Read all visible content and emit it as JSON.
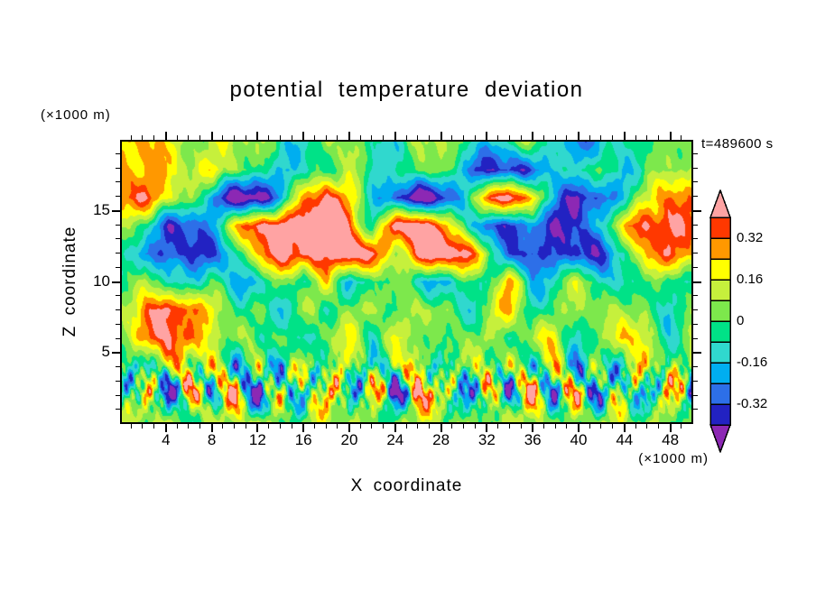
{
  "title": "potential temperature deviation",
  "annotations": {
    "time": "t=489600 s",
    "z_unit": "(×1000 m)",
    "x_unit": "(×1000 m)"
  },
  "axes": {
    "x": {
      "label": "X coordinate",
      "unit": "(×1000 m)",
      "range": [
        0,
        50
      ],
      "major_ticks": [
        4,
        8,
        12,
        16,
        20,
        24,
        28,
        32,
        36,
        40,
        44,
        48
      ],
      "minor_tick_step": 1
    },
    "z": {
      "label": "Z coordinate",
      "unit": "(×1000 m)",
      "range": [
        0,
        20
      ],
      "major_ticks": [
        5,
        10,
        15
      ],
      "minor_tick_step": 1
    }
  },
  "colorbar": {
    "tick_labels": [
      "0.32",
      "0.16",
      "0",
      "-0.16",
      "-0.32"
    ],
    "over_color": "#FFA3A3",
    "under_color": "#8C28B4"
  },
  "chart_data": {
    "type": "heatmap",
    "title": "potential temperature deviation",
    "xlabel": "X coordinate (×1000 m)",
    "ylabel": "Z coordinate (×1000 m)",
    "time_label": "t=489600 s",
    "x_range": [
      0,
      50
    ],
    "z_range": [
      0,
      20
    ],
    "levels": [
      -0.4,
      -0.32,
      -0.24,
      -0.16,
      -0.08,
      0,
      0.08,
      0.16,
      0.24,
      0.32,
      0.4
    ],
    "colors_low_to_high": [
      "#8C28B4",
      "#2222C2",
      "#2D6FE8",
      "#00AEF0",
      "#30D8CE",
      "#00E287",
      "#7DE84C",
      "#C6F03C",
      "#FFFF00",
      "#FF9800",
      "#FF3800",
      "#FFA3A3"
    ],
    "grid": {
      "x": [
        0,
        2,
        4,
        6,
        8,
        10,
        12,
        14,
        16,
        18,
        20,
        22,
        24,
        26,
        28,
        30,
        32,
        34,
        36,
        38,
        40,
        42,
        44,
        46,
        48,
        50
      ],
      "z": [
        0,
        2,
        4,
        6,
        8,
        10,
        12,
        14,
        16,
        18,
        20
      ],
      "values_rows_bottom_to_top": [
        [
          0.06,
          0.05,
          0.08,
          0.04,
          0.07,
          0.05,
          0.09,
          0.04,
          0.06,
          0.08,
          0.05,
          0.07,
          0.04,
          0.08,
          0.06,
          0.05,
          0.09,
          0.04,
          0.07,
          0.05,
          0.08,
          0.06,
          0.04,
          0.07,
          0.05,
          0.06
        ],
        [
          -0.3,
          0.38,
          -0.48,
          0.3,
          -0.2,
          0.42,
          -0.52,
          0.28,
          -0.4,
          0.45,
          -0.25,
          0.35,
          -0.5,
          0.22,
          0.4,
          -0.45,
          0.18,
          -0.35,
          0.48,
          -0.28,
          0.35,
          -0.5,
          0.3,
          -0.38,
          0.42,
          -0.4
        ],
        [
          0.12,
          -0.25,
          0.28,
          -0.1,
          0.32,
          -0.28,
          0.15,
          -0.35,
          0.3,
          -0.12,
          0.25,
          -0.3,
          0.12,
          0.28,
          -0.25,
          0.18,
          -0.1,
          0.3,
          -0.22,
          0.25,
          -0.35,
          0.15,
          -0.2,
          0.32,
          -0.15,
          0.2
        ],
        [
          0.08,
          0.25,
          0.4,
          0.35,
          0.15,
          0.02,
          -0.08,
          0.06,
          -0.1,
          0.04,
          0.12,
          -0.06,
          0.22,
          0.05,
          -0.08,
          0.04,
          0.15,
          -0.06,
          0.05,
          0.18,
          -0.1,
          0.04,
          0.25,
          0.08,
          -0.06,
          0.05
        ],
        [
          0.04,
          0.3,
          0.48,
          0.38,
          0.12,
          -0.06,
          0.05,
          -0.12,
          0.04,
          -0.08,
          0.05,
          0.18,
          -0.06,
          0.04,
          0.12,
          -0.12,
          0.05,
          0.22,
          -0.08,
          0.04,
          0.15,
          -0.06,
          0.12,
          0.04,
          -0.1,
          0.04
        ],
        [
          -0.08,
          0.22,
          -0.12,
          -0.15,
          -0.05,
          -0.12,
          -0.15,
          0.04,
          -0.12,
          0.25,
          -0.14,
          -0.1,
          0.05,
          -0.12,
          -0.15,
          -0.05,
          -0.12,
          0.3,
          -0.1,
          -0.14,
          0.15,
          -0.12,
          -0.08,
          0.05,
          -0.12,
          -0.06
        ],
        [
          -0.06,
          -0.22,
          -0.38,
          -0.36,
          -0.28,
          -0.1,
          0.25,
          0.42,
          0.5,
          0.46,
          0.5,
          0.4,
          0.1,
          0.46,
          0.52,
          0.42,
          0.15,
          -0.28,
          -0.38,
          -0.34,
          -0.38,
          -0.3,
          -0.12,
          0.22,
          0.38,
          0.3
        ],
        [
          0.1,
          -0.12,
          -0.34,
          -0.3,
          -0.18,
          0.18,
          0.46,
          0.52,
          0.5,
          0.52,
          0.35,
          -0.05,
          0.52,
          0.5,
          0.28,
          0.08,
          -0.32,
          -0.36,
          -0.3,
          -0.36,
          -0.3,
          -0.18,
          0.18,
          0.42,
          0.48,
          0.36
        ],
        [
          0.32,
          0.42,
          0.22,
          0.05,
          -0.28,
          -0.52,
          -0.45,
          -0.18,
          0.22,
          0.46,
          0.28,
          -0.12,
          -0.38,
          -0.52,
          -0.4,
          -0.12,
          0.28,
          0.46,
          0.32,
          -0.22,
          -0.44,
          -0.36,
          -0.12,
          0.18,
          0.32,
          0.22
        ],
        [
          0.28,
          0.32,
          0.18,
          0.08,
          0.22,
          0.12,
          -0.08,
          -0.2,
          -0.12,
          0.05,
          0.1,
          -0.14,
          -0.1,
          0.06,
          0.12,
          -0.28,
          -0.38,
          -0.34,
          -0.28,
          -0.2,
          -0.1,
          0.05,
          -0.12,
          -0.08,
          0.06,
          0.12
        ],
        [
          0.22,
          0.26,
          0.14,
          0.06,
          0.16,
          0.08,
          0.04,
          -0.06,
          -0.1,
          0.04,
          0.06,
          -0.1,
          -0.05,
          0.05,
          0.08,
          -0.06,
          -0.12,
          -0.05,
          0.06,
          -0.16,
          -0.22,
          -0.16,
          -0.1,
          -0.04,
          0.05,
          0.08
        ]
      ]
    }
  }
}
